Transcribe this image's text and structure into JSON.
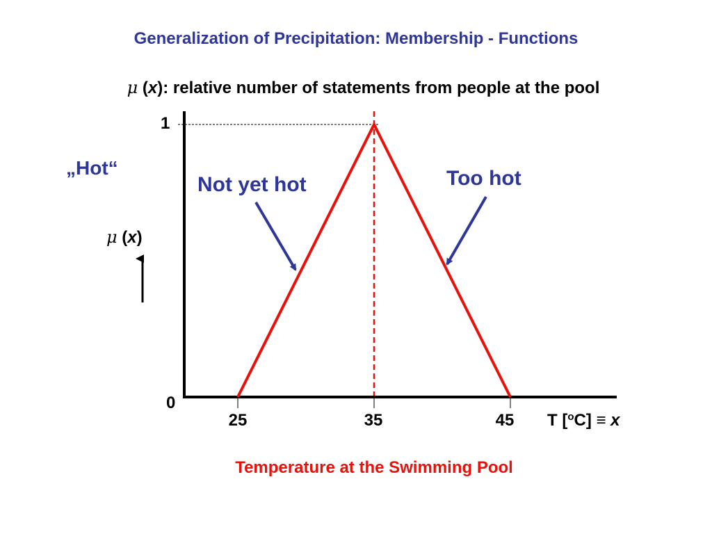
{
  "title": "Generalization of Precipitation: Membership - Functions",
  "subtitle": {
    "mu": "μ",
    "open": " (",
    "x": "x",
    "rest": "): relative number of statements from people at the pool"
  },
  "hot_label": "„Hot“",
  "annotations": {
    "left": "Not yet hot",
    "right": "Too hot"
  },
  "y_axis_label": {
    "mu": "μ",
    "open": " (",
    "x": "x",
    "close": ")"
  },
  "x_axis_label": {
    "prefix": "T [",
    "sup": "o",
    "suffix": "C] ≡ ",
    "x": "x"
  },
  "caption": "Temperature at the Swimming Pool",
  "colors": {
    "title": "#2f3699",
    "arrows": "#2f3699",
    "curve": "#e8120b",
    "caption": "#e8120b",
    "axes": "#000000"
  },
  "chart_data": {
    "type": "line",
    "title": "",
    "xlabel": "T [oC] ≡ x",
    "ylabel": "μ (x)",
    "x_ticks": [
      "25",
      "35",
      "45"
    ],
    "y_ticks": [
      "0",
      "1"
    ],
    "xlim": [
      20,
      52
    ],
    "ylim": [
      0,
      1
    ],
    "series": [
      {
        "x": [
          25,
          35,
          45
        ],
        "y": [
          0,
          1,
          0
        ]
      }
    ],
    "reference_lines": [
      {
        "orientation": "vertical",
        "x": 35,
        "style": "dashed",
        "color": "#e8120b"
      },
      {
        "orientation": "horizontal",
        "y": 1,
        "style": "dashed",
        "color": "#000000"
      }
    ],
    "grid": false
  }
}
